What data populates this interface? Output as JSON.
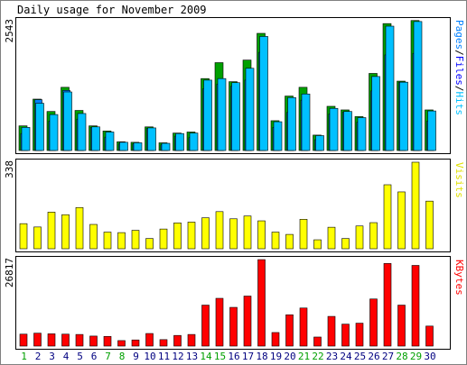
{
  "chart_data": {
    "type": "bar",
    "title": "Daily usage for November 2009",
    "colors": {
      "pages": "#0080ff",
      "files": "#0000ff",
      "hits": "#00c0ff",
      "visits": "#ffff00",
      "kbytes": "#ff0000",
      "hits_back": "#00a000",
      "weekend": "#00a000",
      "weekday": "#000080"
    },
    "days": [
      "1",
      "2",
      "3",
      "4",
      "5",
      "6",
      "7",
      "8",
      "9",
      "10",
      "11",
      "12",
      "13",
      "14",
      "15",
      "16",
      "17",
      "18",
      "19",
      "20",
      "21",
      "22",
      "23",
      "24",
      "25",
      "26",
      "27",
      "28",
      "29",
      "30"
    ],
    "weekend_days": [
      "1",
      "7",
      "8",
      "14",
      "15",
      "21",
      "22",
      "28",
      "29"
    ],
    "legend": {
      "pages": "Pages",
      "files": "Files",
      "hits": "Hits",
      "visits": "Visits",
      "kbytes": "KBytes",
      "separator": "/"
    },
    "panels": [
      {
        "id": "hits",
        "ymax_label": "2543",
        "ymax": 2543,
        "series": [
          {
            "name": "Hits",
            "values": [
              480,
              1000,
              760,
              1230,
              780,
              480,
              380,
              170,
              160,
              460,
              150,
              340,
              360,
              1400,
              1710,
              1340,
              1760,
              2280,
              580,
              1060,
              1230,
              300,
              860,
              790,
              660,
              1500,
              2470,
              1350,
              2530,
              790
            ]
          },
          {
            "name": "Files",
            "values": [
              450,
              920,
              700,
              1140,
              720,
              460,
              360,
              160,
              150,
              440,
              140,
              330,
              340,
              1370,
              1400,
              1320,
              1600,
              2220,
              560,
              1030,
              1100,
              290,
              820,
              760,
              640,
              1440,
              2420,
              1330,
              2510,
              770
            ]
          },
          {
            "name": "Pages",
            "values": [
              330,
              990,
              570,
              1170,
              610,
              450,
              260,
              130,
              130,
              430,
              110,
              280,
              250,
              1200,
              1290,
              1250,
              1370,
              1910,
              450,
              740,
              980,
              210,
              710,
              750,
              550,
              1160,
              1860,
              1330,
              1890,
              570
            ]
          }
        ]
      },
      {
        "id": "visits",
        "ymax_label": "338",
        "ymax": 338,
        "series": [
          {
            "name": "Visits",
            "values": [
              98,
              85,
              143,
              133,
              161,
              95,
              65,
              63,
              72,
              40,
              77,
              101,
              104,
              121,
              145,
              117,
              128,
              109,
              65,
              56,
              115,
              35,
              84,
              40,
              89,
              102,
              250,
              222,
              338,
              186
            ]
          }
        ]
      },
      {
        "id": "kbytes",
        "ymax_label": "26817",
        "ymax": 26817,
        "series": [
          {
            "name": "KBytes",
            "values": [
              3700,
              4000,
              3800,
              3700,
              3600,
              3100,
              3000,
              1700,
              1900,
              3900,
              2000,
              3300,
              3600,
              12700,
              14800,
              12000,
              15500,
              26800,
              4200,
              9700,
              11800,
              2800,
              9200,
              6800,
              7100,
              14600,
              25600,
              12700,
              25000,
              6200
            ]
          }
        ]
      }
    ]
  }
}
